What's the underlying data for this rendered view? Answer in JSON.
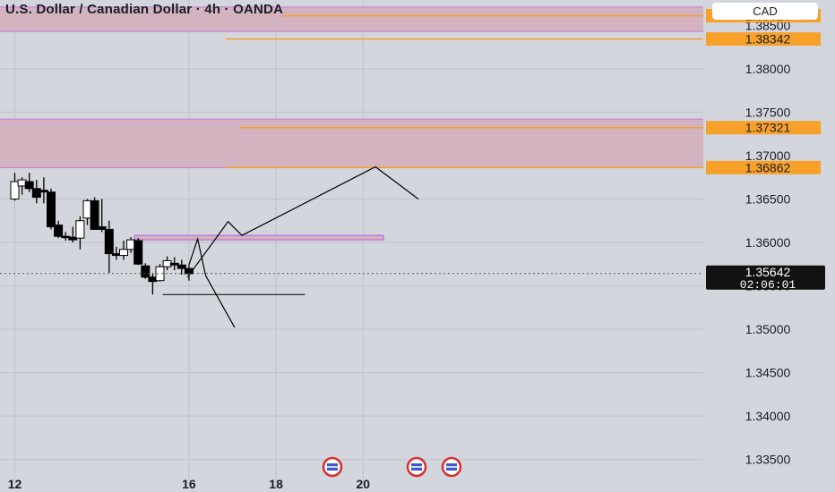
{
  "title": "U.S. Dollar / Canadian Dollar · 4h · OANDA",
  "currency_button": "CAD",
  "colors": {
    "background": "#d3d6dc",
    "grid": "#bfc3ca",
    "zone_fill": "#d4b3c0",
    "zone_border": "#c27bd6",
    "level_line": "#f7a12b",
    "candle_up": "#ffffff",
    "candle_down": "#000000",
    "price_tag": "#111111"
  },
  "chart_data": {
    "type": "candlestick",
    "symbol": "USDCAD",
    "timeframe": "4h",
    "ylim": [
      1.3325,
      1.3875
    ],
    "y_ticks": [
      "1.38500",
      "1.38000",
      "1.37500",
      "1.37000",
      "1.36500",
      "1.36000",
      "1.35500",
      "1.35000",
      "1.34500",
      "1.34000",
      "1.33500"
    ],
    "x_ticks": [
      {
        "label": "12",
        "index": 0
      },
      {
        "label": "16",
        "index": 24
      },
      {
        "label": "18",
        "index": 36
      },
      {
        "label": "20",
        "index": 48
      }
    ],
    "candles": [
      {
        "i": 0,
        "o": 1.365,
        "h": 1.368,
        "l": 1.3648,
        "c": 1.367
      },
      {
        "i": 1,
        "o": 1.3665,
        "h": 1.3675,
        "l": 1.3655,
        "c": 1.3672
      },
      {
        "i": 2,
        "o": 1.367,
        "h": 1.368,
        "l": 1.3658,
        "c": 1.3662
      },
      {
        "i": 3,
        "o": 1.3662,
        "h": 1.3672,
        "l": 1.3645,
        "c": 1.3652
      },
      {
        "i": 4,
        "o": 1.366,
        "h": 1.3675,
        "l": 1.3645,
        "c": 1.3658
      },
      {
        "i": 5,
        "o": 1.3658,
        "h": 1.3662,
        "l": 1.3615,
        "c": 1.3618
      },
      {
        "i": 6,
        "o": 1.362,
        "h": 1.3625,
        "l": 1.3605,
        "c": 1.3607
      },
      {
        "i": 7,
        "o": 1.3607,
        "h": 1.3612,
        "l": 1.3602,
        "c": 1.3606
      },
      {
        "i": 8,
        "o": 1.3606,
        "h": 1.3618,
        "l": 1.36,
        "c": 1.3603
      },
      {
        "i": 9,
        "o": 1.3605,
        "h": 1.363,
        "l": 1.3592,
        "c": 1.3625
      },
      {
        "i": 10,
        "o": 1.3628,
        "h": 1.365,
        "l": 1.362,
        "c": 1.3648
      },
      {
        "i": 11,
        "o": 1.3648,
        "h": 1.3652,
        "l": 1.3615,
        "c": 1.3615
      },
      {
        "i": 12,
        "o": 1.3618,
        "h": 1.365,
        "l": 1.3612,
        "c": 1.3615
      },
      {
        "i": 13,
        "o": 1.3615,
        "h": 1.3625,
        "l": 1.3565,
        "c": 1.3587
      },
      {
        "i": 14,
        "o": 1.3587,
        "h": 1.3595,
        "l": 1.358,
        "c": 1.3585
      },
      {
        "i": 15,
        "o": 1.3585,
        "h": 1.3602,
        "l": 1.358,
        "c": 1.3592
      },
      {
        "i": 16,
        "o": 1.3592,
        "h": 1.3606,
        "l": 1.3588,
        "c": 1.3603
      },
      {
        "i": 17,
        "o": 1.3602,
        "h": 1.3605,
        "l": 1.3574,
        "c": 1.3575
      },
      {
        "i": 18,
        "o": 1.3573,
        "h": 1.3576,
        "l": 1.3558,
        "c": 1.356
      },
      {
        "i": 19,
        "o": 1.356,
        "h": 1.3564,
        "l": 1.354,
        "c": 1.3555
      },
      {
        "i": 20,
        "o": 1.3556,
        "h": 1.3575,
        "l": 1.3555,
        "c": 1.3572
      },
      {
        "i": 21,
        "o": 1.3572,
        "h": 1.3584,
        "l": 1.3568,
        "c": 1.3579
      },
      {
        "i": 22,
        "o": 1.3576,
        "h": 1.3583,
        "l": 1.3568,
        "c": 1.3574
      },
      {
        "i": 23,
        "o": 1.3574,
        "h": 1.358,
        "l": 1.3563,
        "c": 1.357
      },
      {
        "i": 24,
        "o": 1.357,
        "h": 1.3574,
        "l": 1.3556,
        "c": 1.3564
      }
    ],
    "zones": [
      {
        "top": 1.3871,
        "bottom": 1.3843
      },
      {
        "top": 1.3742,
        "bottom": 1.3686
      },
      {
        "top": 1.3608,
        "bottom": 1.3603
      }
    ],
    "levels": [
      "1.38610",
      "1.38342",
      "1.37321",
      "1.36862"
    ],
    "level_values": [
      1.3861,
      1.38342,
      1.37321,
      1.36862
    ],
    "current_price": {
      "value": "1.35642",
      "countdown": "02:06:01"
    },
    "projection_paths": [
      [
        [
          24,
          1.3574
        ],
        [
          25.2,
          1.3604
        ],
        [
          26.3,
          1.3562
        ],
        [
          30.3,
          1.3502
        ]
      ],
      [
        [
          23.8,
          1.356
        ],
        [
          29.4,
          1.3624
        ],
        [
          31.3,
          1.3608
        ],
        [
          49.7,
          1.3687
        ],
        [
          55.6,
          1.365
        ]
      ]
    ],
    "support_line": {
      "value": 1.354,
      "from": 20.4,
      "to": 40.0
    }
  }
}
